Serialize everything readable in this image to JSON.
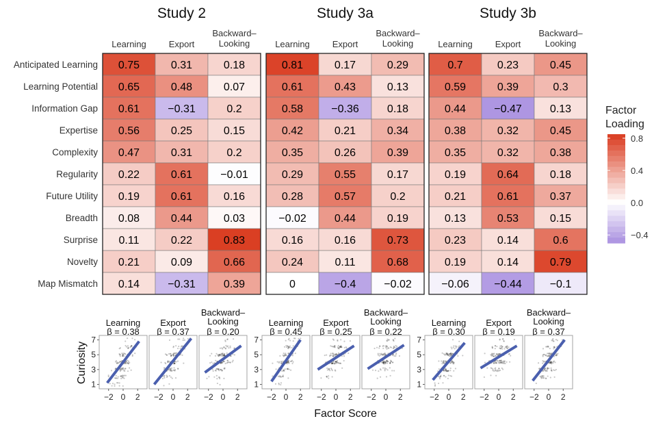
{
  "chart_data": {
    "type": "heatmap",
    "studies": [
      "Study 2",
      "Study 3a",
      "Study 3b"
    ],
    "factors": [
      "Learning",
      "Export",
      "Backward– Looking"
    ],
    "features": [
      "Anticipated Learning",
      "Learning Potential",
      "Information Gap",
      "Expertise",
      "Complexity",
      "Regularity",
      "Future Utility",
      "Breadth",
      "Surprise",
      "Novelty",
      "Map Mismatch"
    ],
    "loadings": [
      [
        [
          0.75,
          0.31,
          0.18
        ],
        [
          0.65,
          0.48,
          0.07
        ],
        [
          0.61,
          -0.31,
          0.2
        ],
        [
          0.56,
          0.25,
          0.15
        ],
        [
          0.47,
          0.31,
          0.2
        ],
        [
          0.22,
          0.61,
          -0.01
        ],
        [
          0.19,
          0.61,
          0.16
        ],
        [
          0.08,
          0.44,
          0.03
        ],
        [
          0.11,
          0.22,
          0.83
        ],
        [
          0.21,
          0.09,
          0.66
        ],
        [
          0.14,
          -0.31,
          0.39
        ]
      ],
      [
        [
          0.81,
          0.17,
          0.29
        ],
        [
          0.61,
          0.43,
          0.13
        ],
        [
          0.58,
          -0.36,
          0.18
        ],
        [
          0.42,
          0.21,
          0.34
        ],
        [
          0.35,
          0.26,
          0.39
        ],
        [
          0.29,
          0.55,
          0.17
        ],
        [
          0.28,
          0.57,
          0.2
        ],
        [
          -0.02,
          0.44,
          0.19
        ],
        [
          0.16,
          0.16,
          0.73
        ],
        [
          0.24,
          0.11,
          0.68
        ],
        [
          0,
          -0.4,
          -0.02
        ]
      ],
      [
        [
          0.7,
          0.23,
          0.45
        ],
        [
          0.59,
          0.39,
          0.3
        ],
        [
          0.44,
          -0.47,
          0.13
        ],
        [
          0.38,
          0.32,
          0.45
        ],
        [
          0.35,
          0.32,
          0.38
        ],
        [
          0.19,
          0.64,
          0.18
        ],
        [
          0.21,
          0.61,
          0.37
        ],
        [
          0.13,
          0.53,
          0.15
        ],
        [
          0.23,
          0.14,
          0.6
        ],
        [
          0.19,
          0.14,
          0.79
        ],
        [
          -0.06,
          -0.44,
          -0.1
        ]
      ]
    ],
    "legend": {
      "title": "Factor Loading",
      "ticks": [
        0.8,
        0.4,
        0.0,
        -0.4
      ],
      "tick_labels": [
        "0.8",
        "0.4",
        "0.0",
        "−0.4"
      ],
      "range": [
        -0.5,
        0.85
      ],
      "colors": {
        "high": "#d93a1e",
        "mid": "#ffffff",
        "low": "#a98fe0"
      }
    },
    "regression": {
      "type": "scatter",
      "ylabel": "Curiosity",
      "xlabel": "Factor Score",
      "y_ticks": [
        1,
        3,
        5,
        7
      ],
      "x_ticks": [
        -2,
        0,
        2
      ],
      "x_tick_labels": [
        "−2",
        "0",
        "2"
      ],
      "xlim": [
        -3.3,
        3.3
      ],
      "ylim": [
        0.4,
        7.6
      ],
      "panel_labels": [
        [
          "Learning",
          "Export",
          "Backward– Looking"
        ],
        [
          "Learning",
          "Export",
          "Backward– Looking"
        ],
        [
          "Learning",
          "Export",
          "Backward– Looking"
        ]
      ],
      "betas": [
        [
          "β = 0.38",
          "β = 0.37",
          "β = 0.20"
        ],
        [
          "β = 0.45",
          "β = 0.25",
          "β = 0.22"
        ],
        [
          "β = 0.30",
          "β = 0.19",
          "β = 0.37"
        ]
      ],
      "lines": [
        [
          [
            -2.2,
            1.2,
            2.2,
            6.8
          ],
          [
            -2.6,
            1.0,
            2.5,
            7.2
          ],
          [
            -2.5,
            2.6,
            2.5,
            6.2
          ]
        ],
        [
          [
            -2.0,
            1.4,
            2.0,
            7.0
          ],
          [
            -2.5,
            3.0,
            2.5,
            6.2
          ],
          [
            -2.5,
            3.1,
            2.5,
            6.3
          ]
        ],
        [
          [
            -2.2,
            1.6,
            2.2,
            6.6
          ],
          [
            -2.5,
            3.2,
            2.5,
            6.2
          ],
          [
            -2.2,
            1.5,
            2.2,
            7.0
          ]
        ]
      ],
      "line_color": "#4a5fae",
      "point_color": "#000000"
    }
  }
}
